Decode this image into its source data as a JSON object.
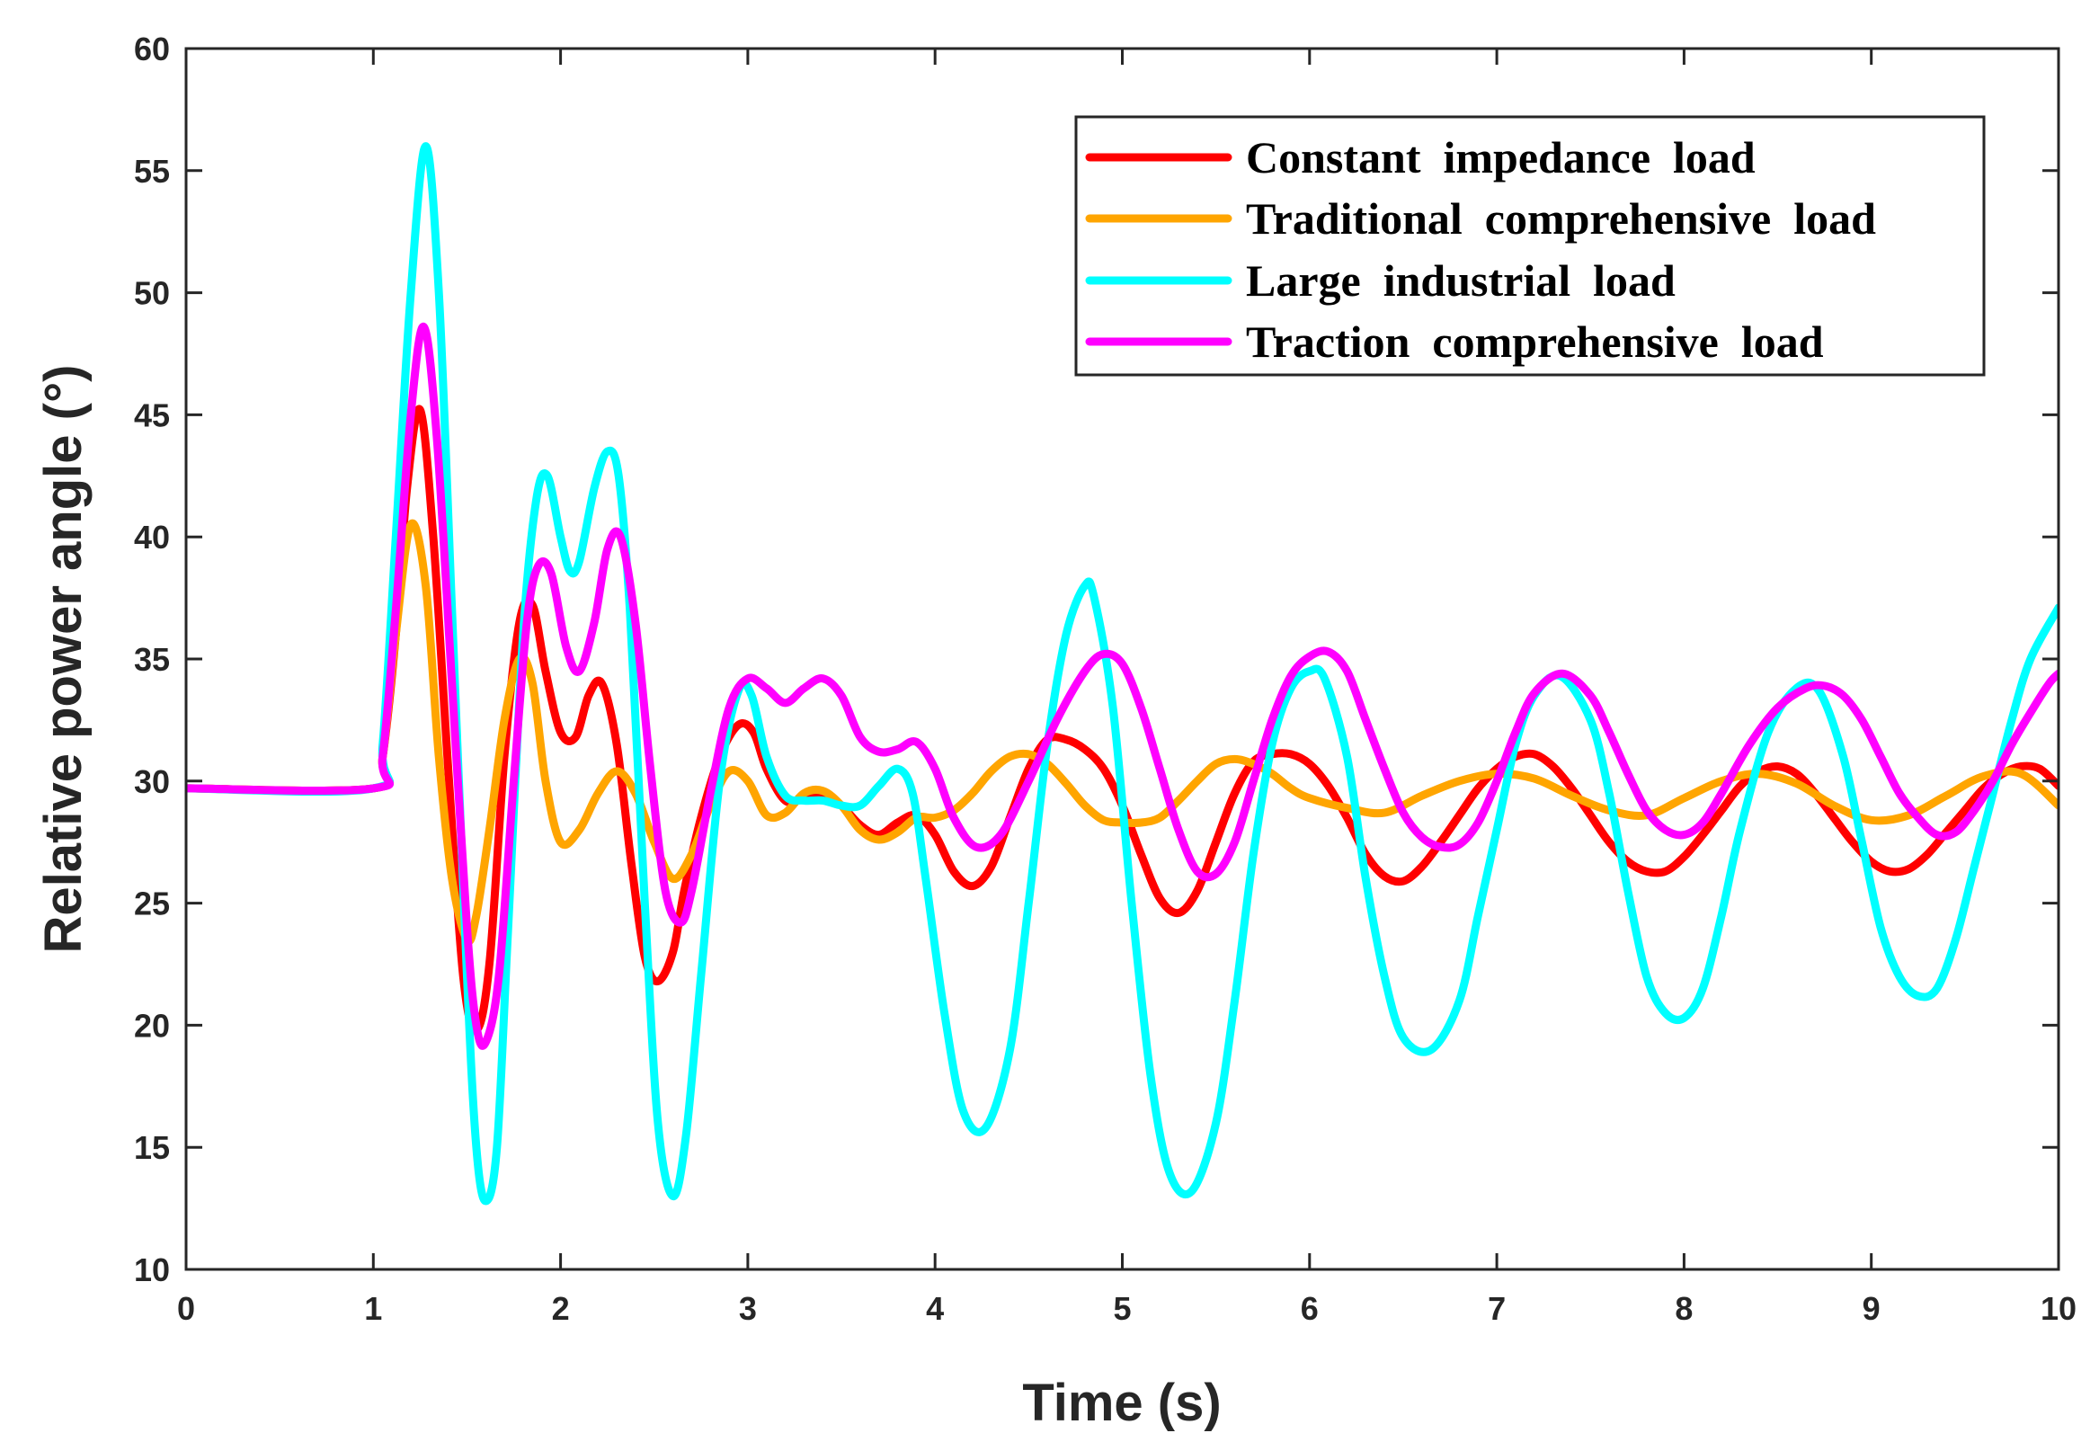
{
  "chart_data": {
    "type": "line",
    "title": "",
    "xlabel": "Time (s)",
    "ylabel": "Relative power angle (°)",
    "xlim": [
      0,
      10
    ],
    "ylim": [
      10,
      60
    ],
    "xticks": [
      "0",
      "1",
      "2",
      "3",
      "4",
      "5",
      "6",
      "7",
      "8",
      "9",
      "10"
    ],
    "yticks": [
      "10",
      "15",
      "20",
      "25",
      "30",
      "35",
      "40",
      "45",
      "50",
      "55",
      "60"
    ],
    "grid": false,
    "legend_position": "top-right",
    "series": [
      {
        "name": "Constant  impedance  load",
        "color": "#ff0000",
        "x": [
          0,
          1.0,
          1.05,
          1.12,
          1.18,
          1.25,
          1.32,
          1.4,
          1.48,
          1.55,
          1.62,
          1.7,
          1.78,
          1.85,
          1.92,
          2.0,
          2.08,
          2.15,
          2.22,
          2.3,
          2.38,
          2.45,
          2.52,
          2.6,
          2.66,
          2.75,
          2.85,
          2.95,
          3.03,
          3.1,
          3.2,
          3.3,
          3.4,
          3.5,
          3.6,
          3.7,
          3.8,
          3.9,
          4.0,
          4.1,
          4.2,
          4.3,
          4.4,
          4.5,
          4.6,
          4.7,
          4.8,
          4.9,
          5.0,
          5.1,
          5.2,
          5.3,
          5.4,
          5.5,
          5.6,
          5.7,
          5.8,
          5.9,
          6.0,
          6.1,
          6.2,
          6.3,
          6.4,
          6.5,
          6.6,
          6.7,
          6.8,
          6.9,
          7.0,
          7.1,
          7.2,
          7.3,
          7.4,
          7.5,
          7.6,
          7.7,
          7.8,
          7.9,
          8.0,
          8.1,
          8.2,
          8.3,
          8.4,
          8.5,
          8.6,
          8.7,
          8.8,
          8.9,
          9.0,
          9.1,
          9.2,
          9.3,
          9.4,
          9.5,
          9.6,
          9.7,
          9.8,
          9.9,
          10.0
        ],
        "y": [
          29.7,
          29.7,
          31.0,
          36.0,
          42.0,
          45.2,
          40.0,
          30.5,
          22.0,
          19.8,
          22.5,
          31.0,
          36.5,
          37.2,
          34.5,
          32.0,
          31.8,
          33.5,
          34.0,
          31.5,
          26.5,
          22.8,
          21.8,
          23.0,
          25.5,
          28.5,
          31.0,
          32.3,
          32.0,
          30.5,
          29.2,
          29.3,
          29.5,
          29.0,
          28.2,
          27.8,
          28.3,
          28.6,
          27.8,
          26.3,
          25.7,
          26.5,
          28.5,
          30.5,
          31.7,
          31.7,
          31.3,
          30.5,
          29.0,
          27.0,
          25.2,
          24.6,
          25.5,
          27.5,
          29.5,
          30.8,
          31.1,
          31.1,
          30.7,
          29.8,
          28.5,
          27.0,
          26.1,
          25.9,
          26.5,
          27.5,
          28.6,
          29.7,
          30.5,
          31.0,
          31.1,
          30.6,
          29.7,
          28.6,
          27.5,
          26.7,
          26.3,
          26.3,
          26.9,
          27.8,
          28.8,
          29.8,
          30.4,
          30.6,
          30.3,
          29.5,
          28.5,
          27.5,
          26.7,
          26.3,
          26.4,
          27.0,
          27.9,
          28.8,
          29.7,
          30.3,
          30.6,
          30.5,
          29.8
        ]
      },
      {
        "name": "Traditional  comprehensive  load",
        "color": "#ffa500",
        "x": [
          0,
          1.0,
          1.05,
          1.12,
          1.2,
          1.28,
          1.35,
          1.42,
          1.5,
          1.55,
          1.62,
          1.7,
          1.78,
          1.85,
          1.92,
          2.0,
          2.1,
          2.2,
          2.3,
          2.4,
          2.5,
          2.6,
          2.7,
          2.8,
          2.9,
          3.0,
          3.1,
          3.2,
          3.3,
          3.4,
          3.5,
          3.6,
          3.7,
          3.8,
          3.9,
          4.0,
          4.1,
          4.2,
          4.3,
          4.4,
          4.5,
          4.6,
          4.7,
          4.8,
          4.9,
          5.0,
          5.1,
          5.2,
          5.3,
          5.4,
          5.5,
          5.6,
          5.7,
          5.8,
          5.9,
          6.0,
          6.2,
          6.4,
          6.6,
          6.8,
          7.0,
          7.2,
          7.4,
          7.6,
          7.8,
          8.0,
          8.2,
          8.4,
          8.6,
          8.8,
          9.0,
          9.2,
          9.4,
          9.6,
          9.8,
          10.0
        ],
        "y": [
          29.7,
          29.7,
          31.0,
          36.0,
          40.5,
          38.0,
          31.0,
          26.0,
          23.5,
          24.5,
          28.0,
          32.5,
          35.0,
          34.0,
          30.0,
          27.5,
          28.0,
          29.5,
          30.4,
          29.5,
          27.5,
          26.0,
          27.0,
          29.0,
          30.4,
          30.0,
          28.6,
          28.7,
          29.5,
          29.6,
          29.0,
          28.0,
          27.6,
          27.9,
          28.5,
          28.5,
          28.8,
          29.5,
          30.4,
          31.0,
          31.1,
          30.7,
          29.9,
          29.0,
          28.4,
          28.3,
          28.3,
          28.5,
          29.2,
          30.0,
          30.7,
          30.9,
          30.7,
          30.3,
          29.7,
          29.3,
          28.9,
          28.7,
          29.4,
          30.0,
          30.3,
          30.1,
          29.4,
          28.8,
          28.6,
          29.3,
          30.0,
          30.3,
          29.9,
          29.0,
          28.4,
          28.6,
          29.4,
          30.2,
          30.3,
          29.0
        ]
      },
      {
        "name": "Large  industrial  load",
        "color": "#00ffff",
        "x": [
          0,
          1.0,
          1.05,
          1.12,
          1.2,
          1.28,
          1.35,
          1.42,
          1.5,
          1.55,
          1.6,
          1.66,
          1.72,
          1.8,
          1.87,
          1.93,
          2.0,
          2.05,
          2.1,
          2.18,
          2.25,
          2.31,
          2.37,
          2.45,
          2.52,
          2.6,
          2.67,
          2.75,
          2.85,
          2.95,
          3.02,
          3.1,
          3.2,
          3.3,
          3.4,
          3.5,
          3.6,
          3.7,
          3.8,
          3.88,
          3.95,
          4.05,
          4.15,
          4.27,
          4.4,
          4.5,
          4.6,
          4.7,
          4.8,
          4.85,
          4.95,
          5.05,
          5.15,
          5.25,
          5.37,
          5.5,
          5.6,
          5.7,
          5.8,
          5.9,
          6.0,
          6.08,
          6.2,
          6.3,
          6.4,
          6.5,
          6.65,
          6.8,
          6.9,
          7.0,
          7.1,
          7.2,
          7.34,
          7.5,
          7.6,
          7.7,
          7.8,
          7.9,
          8.0,
          8.1,
          8.2,
          8.3,
          8.45,
          8.6,
          8.72,
          8.85,
          8.95,
          9.05,
          9.15,
          9.25,
          9.35,
          9.45,
          9.55,
          9.65,
          9.75,
          9.85,
          10.0
        ],
        "y": [
          29.7,
          29.7,
          31.5,
          40.0,
          50.0,
          56.0,
          50.0,
          37.0,
          22.0,
          15.0,
          12.8,
          15.0,
          24.0,
          36.0,
          41.5,
          42.5,
          40.0,
          38.6,
          39.0,
          42.0,
          43.5,
          42.5,
          37.0,
          25.0,
          16.0,
          13.0,
          15.5,
          22.0,
          30.0,
          33.7,
          33.5,
          31.0,
          29.4,
          29.2,
          29.2,
          29.0,
          29.0,
          29.8,
          30.5,
          29.5,
          26.0,
          20.5,
          16.5,
          15.8,
          19.0,
          25.0,
          31.5,
          36.0,
          38.0,
          37.5,
          33.0,
          25.0,
          18.0,
          14.0,
          13.2,
          16.0,
          21.0,
          27.0,
          31.5,
          33.8,
          34.5,
          34.2,
          31.0,
          26.0,
          22.0,
          19.5,
          19.0,
          21.0,
          24.5,
          28.0,
          31.5,
          33.5,
          34.3,
          32.5,
          29.5,
          25.5,
          22.0,
          20.5,
          20.3,
          21.5,
          24.5,
          28.0,
          32.0,
          33.8,
          33.7,
          31.0,
          27.5,
          24.0,
          22.0,
          21.2,
          21.5,
          23.5,
          26.5,
          29.5,
          32.5,
          35.0,
          37.1
        ]
      },
      {
        "name": "Traction  comprehensive  load",
        "color": "#ff00ff",
        "x": [
          0,
          1.0,
          1.05,
          1.12,
          1.2,
          1.27,
          1.34,
          1.42,
          1.5,
          1.55,
          1.6,
          1.67,
          1.75,
          1.82,
          1.88,
          1.95,
          2.03,
          2.1,
          2.18,
          2.25,
          2.32,
          2.4,
          2.48,
          2.56,
          2.64,
          2.7,
          2.8,
          2.9,
          3.0,
          3.1,
          3.2,
          3.3,
          3.4,
          3.5,
          3.6,
          3.7,
          3.8,
          3.9,
          4.0,
          4.1,
          4.22,
          4.35,
          4.5,
          4.65,
          4.8,
          4.9,
          5.0,
          5.1,
          5.2,
          5.3,
          5.4,
          5.5,
          5.6,
          5.7,
          5.8,
          5.9,
          6.0,
          6.1,
          6.2,
          6.3,
          6.4,
          6.5,
          6.6,
          6.7,
          6.8,
          6.9,
          7.0,
          7.1,
          7.2,
          7.35,
          7.5,
          7.6,
          7.7,
          7.8,
          7.9,
          8.0,
          8.1,
          8.2,
          8.35,
          8.5,
          8.65,
          8.75,
          8.85,
          8.95,
          9.05,
          9.15,
          9.25,
          9.35,
          9.45,
          9.55,
          9.65,
          9.75,
          9.85,
          9.95,
          10.0
        ],
        "y": [
          29.7,
          29.7,
          31.0,
          37.0,
          45.0,
          48.6,
          44.0,
          34.0,
          24.0,
          20.0,
          19.3,
          22.0,
          30.0,
          36.5,
          38.8,
          38.5,
          35.5,
          34.5,
          36.5,
          39.5,
          40.0,
          36.5,
          30.5,
          25.5,
          24.2,
          25.5,
          29.5,
          33.0,
          34.2,
          33.8,
          33.2,
          33.8,
          34.2,
          33.5,
          31.8,
          31.2,
          31.3,
          31.6,
          30.5,
          28.5,
          27.3,
          27.8,
          30.0,
          32.5,
          34.5,
          35.2,
          34.8,
          33.0,
          30.5,
          28.0,
          26.3,
          26.2,
          27.5,
          30.0,
          32.5,
          34.3,
          35.1,
          35.3,
          34.5,
          32.5,
          30.5,
          28.7,
          27.7,
          27.3,
          27.4,
          28.3,
          30.0,
          32.0,
          33.6,
          34.4,
          33.5,
          32.0,
          30.3,
          28.8,
          28.0,
          27.8,
          28.3,
          29.5,
          31.5,
          33.0,
          33.8,
          33.9,
          33.5,
          32.5,
          31.0,
          29.5,
          28.5,
          27.8,
          27.9,
          28.8,
          30.0,
          31.5,
          32.8,
          34.0,
          34.4
        ]
      }
    ]
  }
}
